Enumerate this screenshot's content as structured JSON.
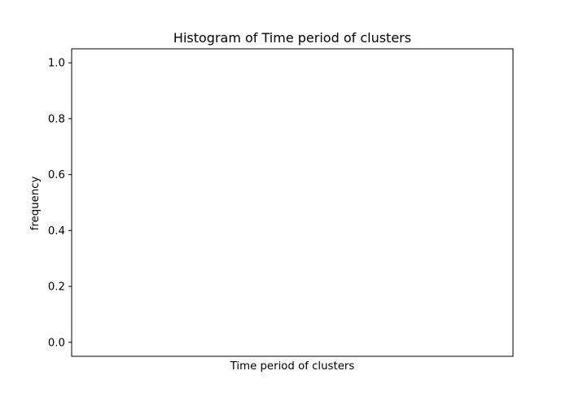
{
  "chart_data": {
    "type": "bar",
    "title": "Histogram of Time period of clusters",
    "xlabel": "Time period of clusters",
    "ylabel": "frequency",
    "categories": [],
    "values": [],
    "ylim": [
      -0.05,
      1.05
    ],
    "yticks": [
      0.0,
      0.2,
      0.4,
      0.6,
      0.8,
      1.0
    ],
    "ytick_labels": [
      "0.0",
      "0.2",
      "0.4",
      "0.6",
      "0.8",
      "1.0"
    ],
    "xticks_visible": false,
    "grid": false,
    "legend": "none",
    "colors": {
      "background": "#ffffff",
      "axes": "#000000",
      "text": "#000000"
    }
  }
}
